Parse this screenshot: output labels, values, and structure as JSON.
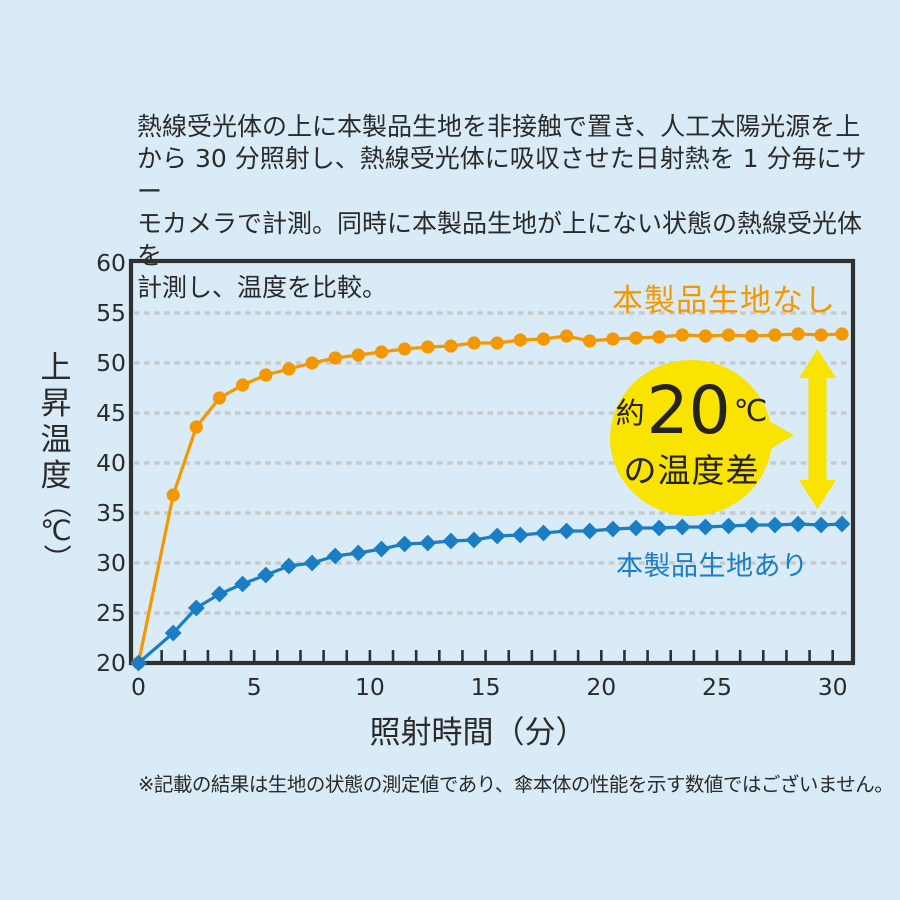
{
  "page": {
    "background": "#d9ebf6"
  },
  "intro": {
    "lines": [
      "熱線受光体の上に本製品生地を非接触で置き、人工太陽光源を上",
      "から 30 分照射し、熱線受光体に吸収させた日射熱を 1 分毎にサー",
      "モカメラで計測。同時に本製品生地が上にない状態の熱線受光体を",
      "計測し、温度を比較。"
    ]
  },
  "footnote": {
    "text": "※記載の結果は生地の状態の測定値であり、傘本体の性能を示す数値ではございません。"
  },
  "chart_data": {
    "type": "line",
    "title": "",
    "xlabel": "照射時間（分）",
    "ylabel": "上昇温度（℃）",
    "xlim": [
      0,
      30.9
    ],
    "ylim": [
      20,
      60
    ],
    "xticks": [
      0,
      5,
      10,
      15,
      20,
      25,
      30
    ],
    "yticks": [
      20,
      25,
      30,
      35,
      40,
      45,
      50,
      55,
      60
    ],
    "grid": "horizontal-dashed",
    "legend_position": "inline-labels",
    "x": [
      0,
      1.5,
      2.5,
      3.5,
      4.5,
      5.5,
      6.5,
      7.5,
      8.5,
      9.5,
      10.5,
      11.5,
      12.5,
      13.5,
      14.5,
      15.5,
      16.5,
      17.5,
      18.5,
      19.5,
      20.5,
      21.5,
      22.5,
      23.5,
      24.5,
      25.5,
      26.5,
      27.5,
      28.5,
      29.5,
      30.4
    ],
    "series": [
      {
        "name": "本製品生地なし",
        "color": "#f39800",
        "marker": "circle",
        "values": [
          20,
          36.8,
          43.6,
          46.5,
          47.8,
          48.8,
          49.4,
          50.0,
          50.5,
          50.8,
          51.1,
          51.4,
          51.6,
          51.7,
          52.0,
          52.0,
          52.3,
          52.4,
          52.7,
          52.2,
          52.4,
          52.5,
          52.6,
          52.8,
          52.7,
          52.8,
          52.7,
          52.8,
          52.9,
          52.8,
          52.9
        ]
      },
      {
        "name": "本製品生地あり",
        "color": "#1b7ec5",
        "marker": "diamond",
        "values": [
          20,
          23.0,
          25.5,
          26.9,
          27.9,
          28.8,
          29.7,
          30.0,
          30.7,
          31.0,
          31.4,
          31.9,
          32.0,
          32.2,
          32.3,
          32.7,
          32.8,
          33.0,
          33.2,
          33.2,
          33.4,
          33.5,
          33.5,
          33.6,
          33.6,
          33.7,
          33.8,
          33.8,
          33.9,
          33.8,
          33.9
        ]
      }
    ],
    "annotation": {
      "prefix": "約",
      "value": "20",
      "unit": "℃",
      "suffix": "の温度差",
      "badge_color": "#f9e300",
      "arrow_color": "#f9e300",
      "text_color": "#262220"
    },
    "colors": {
      "axis": "#303030",
      "gridline": "#c9c9c9",
      "tick_text": "#2b2b2b"
    }
  }
}
